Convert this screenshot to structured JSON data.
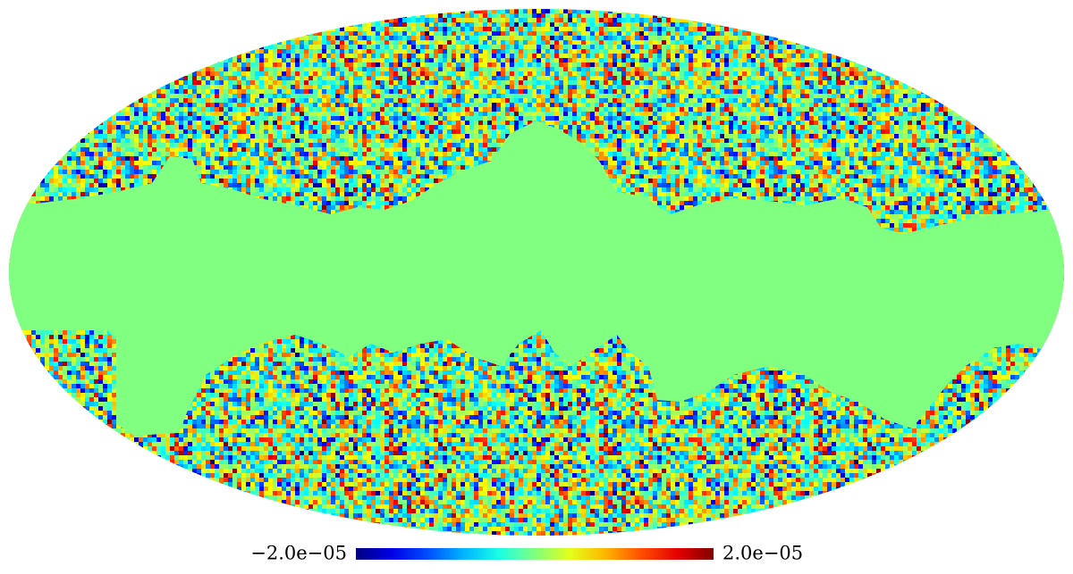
{
  "map": {
    "projection": "mollweide",
    "colormap": "jet",
    "mask_color": "#80ff80",
    "colorbar": {
      "min": {
        "value": -2e-05,
        "label": "−2.0e−05"
      },
      "max": {
        "value": 2e-05,
        "label": "2.0e−05"
      }
    }
  }
}
